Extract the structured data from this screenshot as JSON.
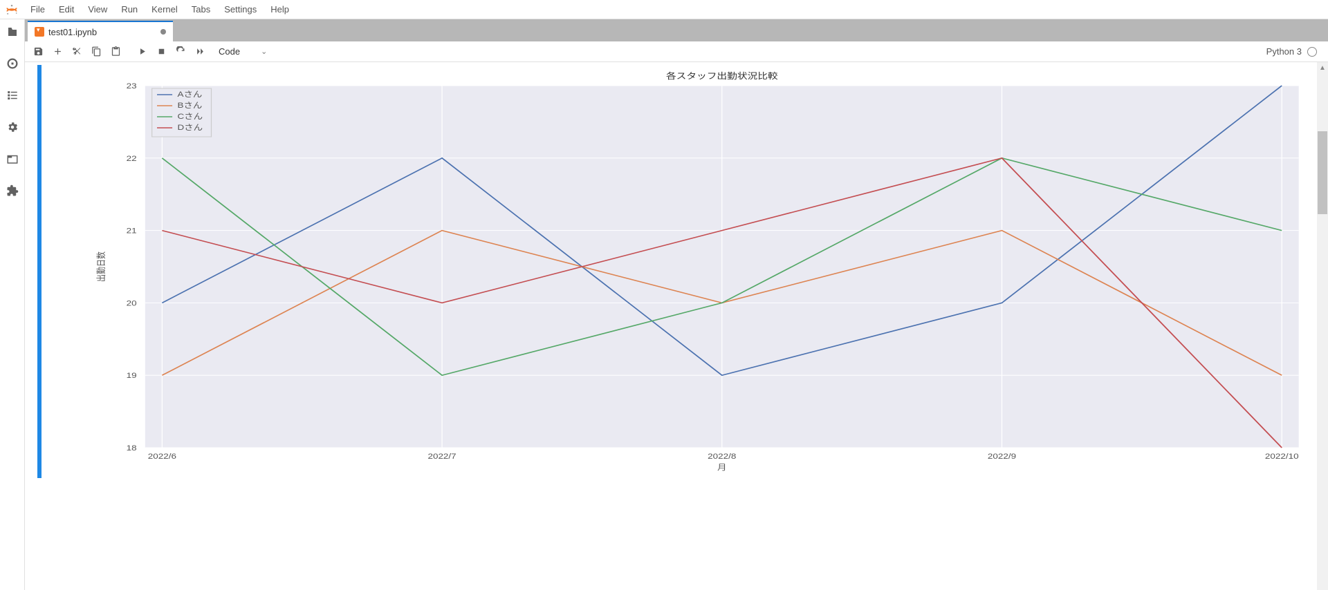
{
  "menu": {
    "file": "File",
    "edit": "Edit",
    "view": "View",
    "run": "Run",
    "kernel": "Kernel",
    "tabs": "Tabs",
    "settings": "Settings",
    "help": "Help"
  },
  "tab": {
    "filename": "test01.ipynb"
  },
  "toolbar": {
    "celltype": "Code"
  },
  "kernel": {
    "name": "Python 3"
  },
  "chart": {
    "type": "line",
    "title": "各スタッフ出勤状況比較",
    "xlabel": "月",
    "ylabel": "出勤日数",
    "categories": [
      "2022/6",
      "2022/7",
      "2022/8",
      "2022/9",
      "2022/10"
    ],
    "ylim": [
      18,
      23
    ],
    "yticks": [
      18,
      19,
      20,
      21,
      22,
      23
    ],
    "series": [
      {
        "name": "Aさん",
        "color": "#4c72b0",
        "values": [
          20,
          22,
          19,
          20,
          23
        ]
      },
      {
        "name": "Bさん",
        "color": "#dd8452",
        "values": [
          19,
          21,
          20,
          21,
          19
        ]
      },
      {
        "name": "Cさん",
        "color": "#55a868",
        "values": [
          22,
          19,
          20,
          22,
          21
        ]
      },
      {
        "name": "Dさん",
        "color": "#c44e52",
        "values": [
          21,
          20,
          21,
          22,
          18
        ]
      }
    ],
    "background_color": "#eaeaf2",
    "grid_color": "#ffffff",
    "title_fontsize": 12,
    "label_fontsize": 11,
    "tick_fontsize": 11,
    "line_width": 1.6,
    "legend_bg": "#eaeaf2",
    "legend_border": "#cccccc"
  }
}
